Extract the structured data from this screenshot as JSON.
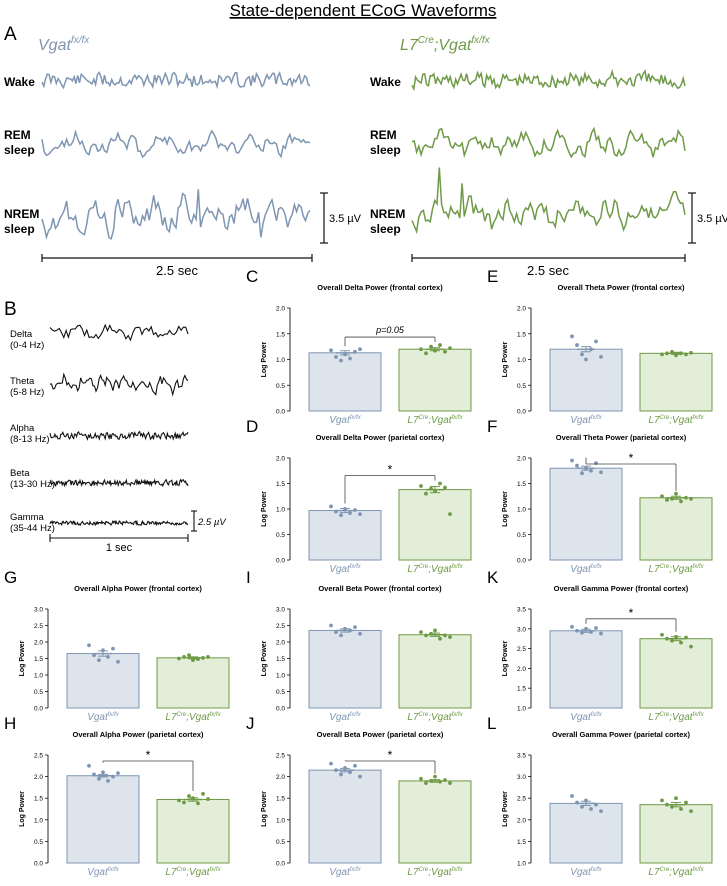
{
  "figure": {
    "title": "State-dependent ECoG Waveforms",
    "colors": {
      "control": "#7f96b2",
      "mutant": "#6f9a47",
      "control_fill": "#dde4ec",
      "mutant_fill": "#e2eed7",
      "ink": "#111111"
    }
  },
  "panel_a": {
    "letter": "A",
    "control_label": {
      "base": "Vgat",
      "sup": "fx/fx"
    },
    "mutant_label": {
      "base1": "L7",
      "sup1": "Cre",
      "base2": ";Vgat",
      "sup2": "fx/fx"
    },
    "rows": [
      {
        "line1": "Wake",
        "line2": ""
      },
      {
        "line1": "REM",
        "line2": "sleep"
      },
      {
        "line1": "NREM",
        "line2": "sleep"
      }
    ],
    "scale_amp": "3.5 µV",
    "scale_time": "2.5 sec"
  },
  "panel_b": {
    "letter": "B",
    "bands": [
      {
        "name": "Delta",
        "range": "(0-4 Hz)"
      },
      {
        "name": "Theta",
        "range": "(5-8 Hz)"
      },
      {
        "name": "Alpha",
        "range": "(8-13 Hz)"
      },
      {
        "name": "Beta",
        "range": "(13-30 Hz)"
      },
      {
        "name": "Gamma",
        "range": "(35-44 Hz)"
      }
    ],
    "scale_amp": "2.5 µV",
    "scale_time": "1 sec"
  },
  "chart_data": [
    {
      "type": "bar",
      "panel": "C",
      "title": "Overall Delta Power (frontal cortex)",
      "ylabel": "Log Power",
      "ylim": [
        0,
        2
      ],
      "yticks": [
        "0.0",
        "0.5",
        "1.0",
        "1.5",
        "2.0"
      ],
      "groups": [
        "Vgatfx/fx",
        "L7Cre;Vgatfx/fx"
      ],
      "values": [
        1.13,
        1.2
      ],
      "sem": [
        0.04,
        0.03
      ],
      "points": [
        [
          1.18,
          1.05,
          0.98,
          1.1,
          1.02,
          1.15,
          1.2
        ],
        [
          1.2,
          1.12,
          1.25,
          1.17,
          1.28,
          1.15,
          1.22
        ]
      ],
      "annotation": {
        "text": "p=0.05",
        "type": "text"
      }
    },
    {
      "type": "bar",
      "panel": "E",
      "title": "Overall Theta Power (frontal cortex)",
      "ylabel": "Log Power",
      "ylim": [
        0,
        2
      ],
      "yticks": [
        "0.0",
        "0.5",
        "1.0",
        "1.5",
        "2.0"
      ],
      "groups": [
        "Vgatfx/fx",
        "L7Cre;Vgatfx/fx"
      ],
      "values": [
        1.2,
        1.12
      ],
      "sem": [
        0.05,
        0.02
      ],
      "points": [
        [
          1.45,
          1.28,
          1.1,
          1.0,
          1.2,
          1.35,
          1.05
        ],
        [
          1.1,
          1.12,
          1.15,
          1.08,
          1.12,
          1.1,
          1.13
        ]
      ],
      "annotation": null
    },
    {
      "type": "bar",
      "panel": "D",
      "title": "Overall Delta Power (parietal cortex)",
      "ylabel": "Log Power",
      "ylim": [
        0,
        2
      ],
      "yticks": [
        "0.0",
        "0.5",
        "1.0",
        "1.5",
        "2.0"
      ],
      "groups": [
        "Vgatfx/fx",
        "L7Cre;Vgatfx/fx"
      ],
      "values": [
        0.97,
        1.38
      ],
      "sem": [
        0.04,
        0.06
      ],
      "points": [
        [
          1.05,
          0.95,
          0.88,
          1.0,
          0.92,
          0.98,
          0.9
        ],
        [
          1.45,
          1.3,
          1.4,
          1.35,
          1.5,
          1.42,
          0.9
        ]
      ],
      "annotation": {
        "text": "*",
        "type": "bracket"
      }
    },
    {
      "type": "bar",
      "panel": "F",
      "title": "Overall Theta Power (parietal cortex)",
      "ylabel": "Log Power",
      "ylim": [
        0,
        2
      ],
      "yticks": [
        "0.0",
        "0.5",
        "1.0",
        "1.5",
        "2.0"
      ],
      "groups": [
        "Vgatfx/fx",
        "L7Cre;Vgatfx/fx"
      ],
      "values": [
        1.8,
        1.22
      ],
      "sem": [
        0.04,
        0.03
      ],
      "points": [
        [
          1.95,
          1.85,
          1.7,
          1.8,
          1.75,
          1.9,
          1.72
        ],
        [
          1.25,
          1.18,
          1.2,
          1.3,
          1.15,
          1.22,
          1.2
        ]
      ],
      "annotation": {
        "text": "*",
        "type": "bracket"
      }
    },
    {
      "type": "bar",
      "panel": "G",
      "title": "Overall Alpha Power (frontal cortex)",
      "ylabel": "Log Power",
      "ylim": [
        0,
        3
      ],
      "yticks": [
        "0.0",
        "0.5",
        "1.0",
        "1.5",
        "2.0",
        "2.5",
        "3.0"
      ],
      "groups": [
        "Vgatfx/fx",
        "L7Cre;Vgatfx/fx"
      ],
      "values": [
        1.65,
        1.52
      ],
      "sem": [
        0.08,
        0.03
      ],
      "points": [
        [
          1.9,
          1.6,
          1.45,
          1.75,
          1.55,
          1.8,
          1.4
        ],
        [
          1.5,
          1.55,
          1.6,
          1.45,
          1.48,
          1.52,
          1.55
        ]
      ],
      "annotation": null
    },
    {
      "type": "bar",
      "panel": "I",
      "title": "Overall Beta Power (frontal cortex)",
      "ylabel": "Log Power",
      "ylim": [
        0,
        3
      ],
      "yticks": [
        "0.0",
        "0.5",
        "1.0",
        "1.5",
        "2.0",
        "2.5",
        "3.0"
      ],
      "groups": [
        "Vgatfx/fx",
        "L7Cre;Vgatfx/fx"
      ],
      "values": [
        2.35,
        2.22
      ],
      "sem": [
        0.05,
        0.05
      ],
      "points": [
        [
          2.5,
          2.3,
          2.2,
          2.4,
          2.35,
          2.45,
          2.25
        ],
        [
          2.3,
          2.2,
          2.25,
          2.35,
          2.1,
          2.2,
          2.15
        ]
      ],
      "annotation": null
    },
    {
      "type": "bar",
      "panel": "K",
      "title": "Overall Gamma Power (frontal cortex)",
      "ylabel": "Log Power",
      "ylim": [
        1,
        3.5
      ],
      "yticks": [
        "1.0",
        "1.5",
        "2.0",
        "2.5",
        "3.0",
        "3.5"
      ],
      "groups": [
        "Vgatfx/fx",
        "L7Cre;Vgatfx/fx"
      ],
      "values": [
        2.95,
        2.75
      ],
      "sem": [
        0.04,
        0.05
      ],
      "points": [
        [
          3.05,
          2.95,
          2.9,
          3.0,
          2.92,
          3.02,
          2.88
        ],
        [
          2.85,
          2.75,
          2.7,
          2.8,
          2.65,
          2.78,
          2.55
        ]
      ],
      "annotation": {
        "text": "*",
        "type": "bracket"
      }
    },
    {
      "type": "bar",
      "panel": "H",
      "title": "Overall Alpha Power (parietal cortex)",
      "ylabel": "Log Power",
      "ylim": [
        0,
        2.5
      ],
      "yticks": [
        "0.0",
        "0.5",
        "1.0",
        "1.5",
        "2.0",
        "2.5"
      ],
      "groups": [
        "Vgatfx/fx",
        "L7Cre;Vgatfx/fx"
      ],
      "values": [
        2.02,
        1.47
      ],
      "sem": [
        0.03,
        0.04
      ],
      "points": [
        [
          2.25,
          2.05,
          1.95,
          2.1,
          1.9,
          2.0,
          2.08
        ],
        [
          1.45,
          1.4,
          1.55,
          1.5,
          1.38,
          1.6,
          1.48
        ]
      ],
      "annotation": {
        "text": "*",
        "type": "bracket"
      }
    },
    {
      "type": "bar",
      "panel": "J",
      "title": "Overall Beta Power (parietal cortex)",
      "ylabel": "Log Power",
      "ylim": [
        0,
        2.5
      ],
      "yticks": [
        "0.0",
        "0.5",
        "1.0",
        "1.5",
        "2.0",
        "2.5"
      ],
      "groups": [
        "Vgatfx/fx",
        "L7Cre;Vgatfx/fx"
      ],
      "values": [
        2.15,
        1.9
      ],
      "sem": [
        0.04,
        0.03
      ],
      "points": [
        [
          2.3,
          2.15,
          2.05,
          2.2,
          2.1,
          2.25,
          2.0
        ],
        [
          1.95,
          1.85,
          1.9,
          2.0,
          1.88,
          1.92,
          1.85
        ]
      ],
      "annotation": {
        "text": "*",
        "type": "bracket"
      }
    },
    {
      "type": "bar",
      "panel": "L",
      "title": "Overall Gamma Power (parietal cortex)",
      "ylabel": "Log Power",
      "ylim": [
        1,
        3.5
      ],
      "yticks": [
        "1.0",
        "1.5",
        "2.0",
        "2.5",
        "3.0",
        "3.5"
      ],
      "groups": [
        "Vgatfx/fx",
        "L7Cre;Vgatfx/fx"
      ],
      "values": [
        2.38,
        2.35
      ],
      "sem": [
        0.05,
        0.05
      ],
      "points": [
        [
          2.55,
          2.4,
          2.3,
          2.45,
          2.25,
          2.35,
          2.2
        ],
        [
          2.45,
          2.35,
          2.3,
          2.5,
          2.25,
          2.4,
          2.2
        ]
      ],
      "annotation": null
    }
  ]
}
